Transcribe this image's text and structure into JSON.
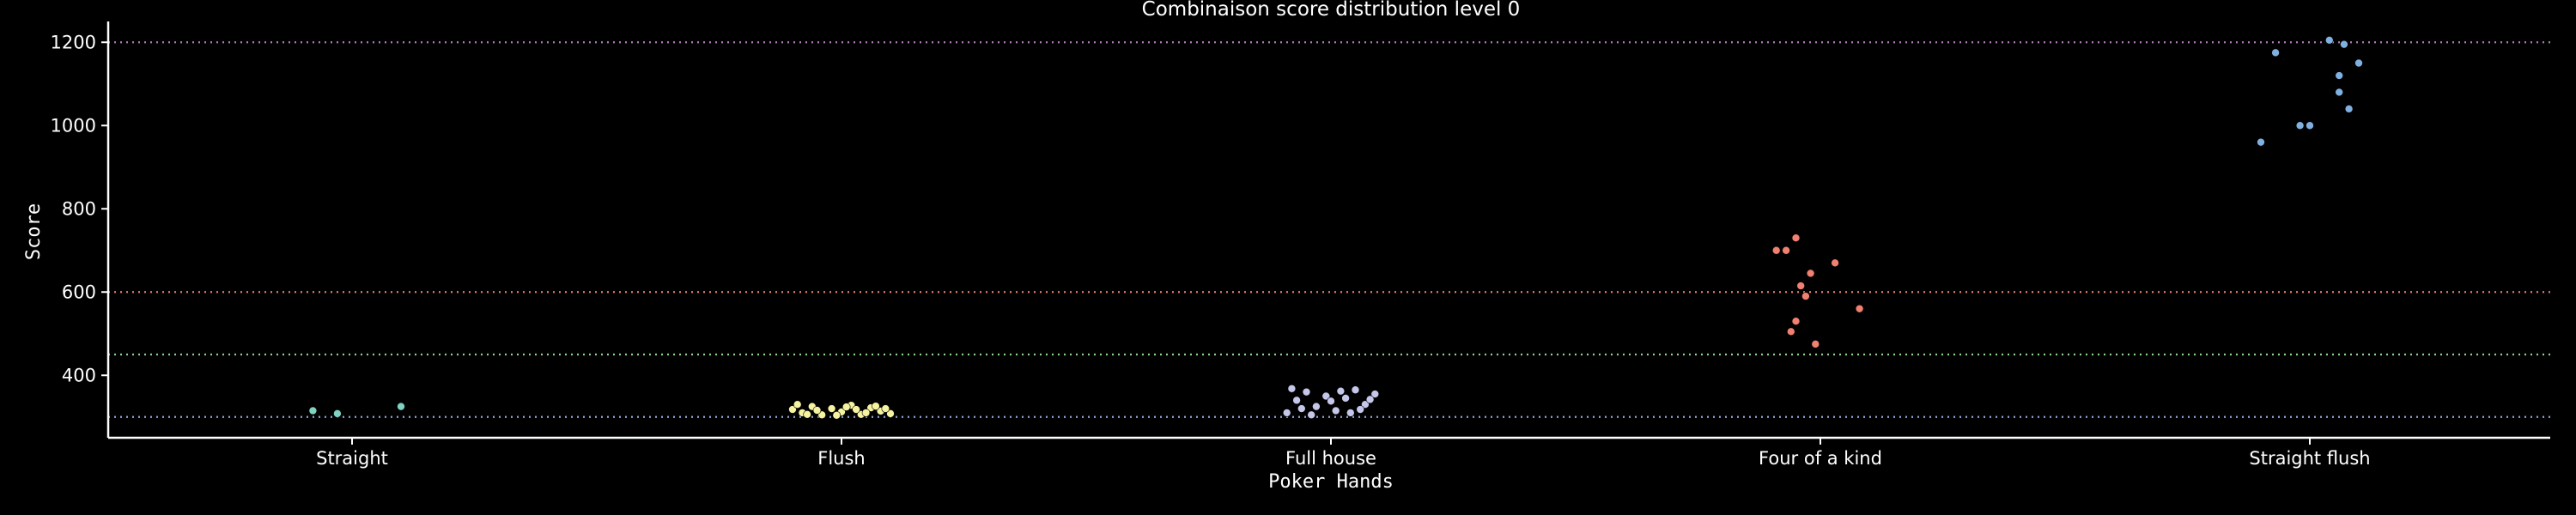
{
  "chart_data": {
    "type": "scatter",
    "title": "Combinaison score distribution level 0",
    "xlabel": "Poker Hands",
    "ylabel": "Score",
    "ylim": [
      250,
      1250
    ],
    "yticks": [
      400,
      600,
      800,
      1000,
      1200
    ],
    "categories": [
      "Straight",
      "Flush",
      "Full house",
      "Four of a kind",
      "Straight flush"
    ],
    "grid": false,
    "legend": "none",
    "reference_lines": [
      {
        "y": 300,
        "color": "#8ea4d8"
      },
      {
        "y": 450,
        "color": "#8fd18f"
      },
      {
        "y": 600,
        "color": "#e07a6a"
      },
      {
        "y": 1200,
        "color": "#b07ab8"
      }
    ],
    "series": [
      {
        "category": "Straight",
        "color": "#7fd1c0",
        "points": [
          {
            "x": -0.08,
            "y": 315
          },
          {
            "x": -0.03,
            "y": 308
          },
          {
            "x": 0.1,
            "y": 325
          }
        ]
      },
      {
        "category": "Flush",
        "color": "#f5f2a0",
        "points": [
          {
            "x": -0.1,
            "y": 318
          },
          {
            "x": -0.08,
            "y": 310
          },
          {
            "x": -0.06,
            "y": 325
          },
          {
            "x": -0.04,
            "y": 305
          },
          {
            "x": -0.02,
            "y": 320
          },
          {
            "x": 0.0,
            "y": 312
          },
          {
            "x": 0.02,
            "y": 328
          },
          {
            "x": 0.04,
            "y": 306
          },
          {
            "x": 0.06,
            "y": 322
          },
          {
            "x": 0.08,
            "y": 314
          },
          {
            "x": 0.1,
            "y": 308
          },
          {
            "x": -0.09,
            "y": 330
          },
          {
            "x": -0.05,
            "y": 316
          },
          {
            "x": -0.01,
            "y": 304
          },
          {
            "x": 0.03,
            "y": 318
          },
          {
            "x": 0.07,
            "y": 326
          },
          {
            "x": 0.09,
            "y": 320
          },
          {
            "x": -0.07,
            "y": 306
          },
          {
            "x": 0.05,
            "y": 310
          },
          {
            "x": 0.01,
            "y": 324
          }
        ]
      },
      {
        "category": "Full house",
        "color": "#c4c6ea",
        "points": [
          {
            "x": -0.09,
            "y": 310
          },
          {
            "x": -0.07,
            "y": 340
          },
          {
            "x": -0.05,
            "y": 360
          },
          {
            "x": -0.03,
            "y": 325
          },
          {
            "x": -0.01,
            "y": 350
          },
          {
            "x": 0.01,
            "y": 315
          },
          {
            "x": 0.03,
            "y": 345
          },
          {
            "x": 0.05,
            "y": 365
          },
          {
            "x": 0.07,
            "y": 330
          },
          {
            "x": 0.09,
            "y": 355
          },
          {
            "x": -0.08,
            "y": 368
          },
          {
            "x": -0.04,
            "y": 305
          },
          {
            "x": 0.0,
            "y": 338
          },
          {
            "x": 0.04,
            "y": 310
          },
          {
            "x": 0.08,
            "y": 342
          },
          {
            "x": -0.06,
            "y": 320
          },
          {
            "x": 0.02,
            "y": 362
          },
          {
            "x": 0.06,
            "y": 318
          }
        ]
      },
      {
        "category": "Four of a kind",
        "color": "#f08070",
        "points": [
          {
            "x": -0.09,
            "y": 700
          },
          {
            "x": -0.07,
            "y": 700
          },
          {
            "x": -0.05,
            "y": 730
          },
          {
            "x": -0.04,
            "y": 615
          },
          {
            "x": -0.03,
            "y": 590
          },
          {
            "x": -0.02,
            "y": 645
          },
          {
            "x": 0.03,
            "y": 670
          },
          {
            "x": 0.08,
            "y": 560
          },
          {
            "x": -0.06,
            "y": 505
          },
          {
            "x": -0.01,
            "y": 475
          },
          {
            "x": -0.05,
            "y": 530
          }
        ]
      },
      {
        "category": "Straight flush",
        "color": "#80b0e0",
        "points": [
          {
            "x": -0.1,
            "y": 960
          },
          {
            "x": -0.07,
            "y": 1175
          },
          {
            "x": -0.02,
            "y": 1000
          },
          {
            "x": 0.0,
            "y": 1000
          },
          {
            "x": 0.04,
            "y": 1205
          },
          {
            "x": 0.06,
            "y": 1120
          },
          {
            "x": 0.06,
            "y": 1080
          },
          {
            "x": 0.07,
            "y": 1195
          },
          {
            "x": 0.08,
            "y": 1040
          },
          {
            "x": 0.1,
            "y": 1150
          }
        ]
      }
    ]
  }
}
